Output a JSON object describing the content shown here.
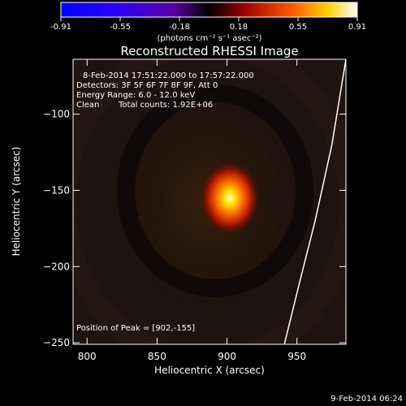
{
  "colorbar": {
    "ticks": [
      "-0.91",
      "-0.55",
      "-0.18",
      "0.18",
      "0.55",
      "0.91"
    ],
    "unit_label": "(photons cm⁻² s⁻¹ asec⁻²)"
  },
  "chart_data": {
    "type": "heatmap",
    "title": "Reconstructed RHESSI Image",
    "xlabel": "Heliocentric X (arcsec)",
    "ylabel": "Heliocentric Y (arcsec)",
    "xlim": [
      790,
      985
    ],
    "ylim": [
      -251,
      -64
    ],
    "x_ticks": [
      800,
      850,
      900,
      950
    ],
    "y_ticks": [
      -100,
      -150,
      -200,
      -250
    ],
    "colorbar_range": [
      -0.91,
      0.91
    ],
    "peak": {
      "x": 902,
      "y": -155
    },
    "limb_arc": [
      [
        985,
        -64
      ],
      [
        975,
        -120
      ],
      [
        963,
        -170
      ],
      [
        952,
        -210
      ],
      [
        941,
        -251
      ]
    ],
    "annotations": {
      "time": "8-Feb-2014 17:51:22.000 to 17:57:22.000",
      "detectors": "Detectors: 3F 5F 6F 7F 8F 9F, Att 0",
      "energy": "Energy Range: 6.0 - 12.0 keV",
      "clean": "Clean",
      "counts": "Total counts: 1.92E+06",
      "peak_label": "Position of Peak = [902,-155]"
    }
  },
  "footer": {
    "timestamp": "9-Feb-2014 06:24"
  }
}
